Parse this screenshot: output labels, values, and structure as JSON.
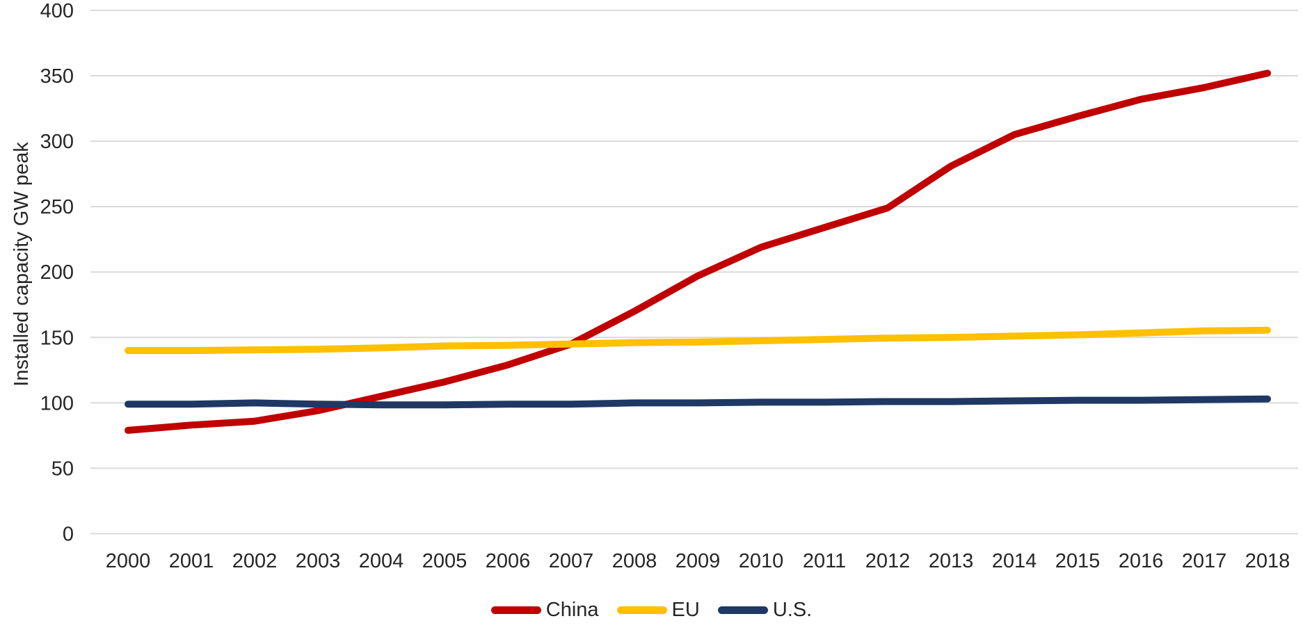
{
  "chart_data": {
    "type": "line",
    "title": "",
    "xlabel": "",
    "ylabel": "Installed capacity GW peak",
    "x": [
      2000,
      2001,
      2002,
      2003,
      2004,
      2005,
      2006,
      2007,
      2008,
      2009,
      2010,
      2011,
      2012,
      2013,
      2014,
      2015,
      2016,
      2017,
      2018
    ],
    "series": [
      {
        "name": "China",
        "color": "#C00000",
        "values": [
          79,
          83,
          86,
          94,
          105,
          116,
          129,
          145,
          170,
          197,
          219,
          234,
          249,
          281,
          305,
          319,
          332,
          341,
          352
        ]
      },
      {
        "name": "EU",
        "color": "#FFC000",
        "values": [
          140,
          140,
          140.5,
          141,
          142,
          143.5,
          144,
          145,
          146,
          146.5,
          147.5,
          148.5,
          149.5,
          150,
          151,
          152,
          153.5,
          155,
          155.5
        ]
      },
      {
        "name": "U.S.",
        "color": "#1F3864",
        "values": [
          99,
          99,
          100,
          99,
          98.5,
          98.5,
          99,
          99,
          100,
          100,
          100.5,
          100.5,
          101,
          101,
          101.5,
          102,
          102,
          102.5,
          103
        ]
      }
    ],
    "ylim": [
      0,
      400
    ],
    "yticks": [
      0,
      50,
      100,
      150,
      200,
      250,
      300,
      350,
      400
    ],
    "grid": "horizontal",
    "gridline_color": "#D9D9D9",
    "text_color": "#262626",
    "background": "#FFFFFF",
    "legend_position": "bottom"
  }
}
